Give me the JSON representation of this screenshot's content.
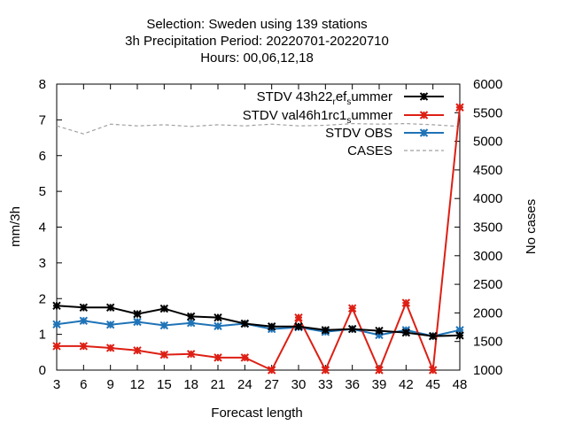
{
  "chart_data": {
    "type": "line",
    "title_lines": [
      "Selection: Sweden using   139 stations",
      "3h Precipitation   Period: 20220701-20220710",
      "Hours:  00,06,12,18"
    ],
    "xlabel": "Forecast length",
    "ylabel": "mm/3h",
    "y2label": "No cases",
    "x": [
      3,
      6,
      9,
      12,
      15,
      18,
      21,
      24,
      27,
      30,
      33,
      36,
      39,
      42,
      45,
      48
    ],
    "xlim": [
      3,
      48
    ],
    "ylim": [
      0,
      8
    ],
    "y2lim": [
      1000,
      6000
    ],
    "xticks": [
      3,
      6,
      9,
      12,
      15,
      18,
      21,
      24,
      27,
      30,
      33,
      36,
      39,
      42,
      45,
      48
    ],
    "yticks": [
      0,
      1,
      2,
      3,
      4,
      5,
      6,
      7,
      8
    ],
    "y2ticks": [
      1000,
      1500,
      2000,
      2500,
      3000,
      3500,
      4000,
      4500,
      5000,
      5500,
      6000
    ],
    "grid": false,
    "legend_position": "top-right",
    "series": [
      {
        "name": "STDV 43h22_ref_summer",
        "legend_parts": [
          "STDV 43h22",
          "r",
          "ef",
          "s",
          "ummer"
        ],
        "axis": "y1",
        "color": "#000000",
        "style": "solid",
        "marker": "star",
        "values": [
          1.8,
          1.75,
          1.75,
          1.57,
          1.72,
          1.5,
          1.47,
          1.3,
          1.22,
          1.22,
          1.12,
          1.15,
          1.1,
          1.05,
          0.95,
          0.97
        ]
      },
      {
        "name": "STDV val46h1rc1_summer",
        "legend_parts": [
          "STDV val46h1rc1",
          "s",
          "ummer"
        ],
        "axis": "y1",
        "color": "#dd1f14",
        "style": "solid",
        "marker": "star",
        "values": [
          0.67,
          0.67,
          0.62,
          0.55,
          0.43,
          0.45,
          0.35,
          0.35,
          0.0,
          1.47,
          0.0,
          1.73,
          0.0,
          1.88,
          0.0,
          7.35
        ]
      },
      {
        "name": "STDV OBS",
        "legend_parts": [
          "STDV OBS"
        ],
        "axis": "y1",
        "color": "#1f73b6",
        "style": "solid",
        "marker": "star",
        "values": [
          1.28,
          1.38,
          1.27,
          1.35,
          1.25,
          1.32,
          1.23,
          1.3,
          1.15,
          1.2,
          1.07,
          1.15,
          0.98,
          1.12,
          0.95,
          1.12
        ]
      },
      {
        "name": "CASES",
        "legend_parts": [
          "CASES"
        ],
        "axis": "y2",
        "color": "#a0a0a0",
        "style": "dashed",
        "marker": "none",
        "values": [
          5270,
          5130,
          5300,
          5270,
          5290,
          5260,
          5290,
          5270,
          5300,
          5270,
          5280,
          5310,
          5300,
          5310,
          5290,
          5260
        ]
      }
    ]
  }
}
